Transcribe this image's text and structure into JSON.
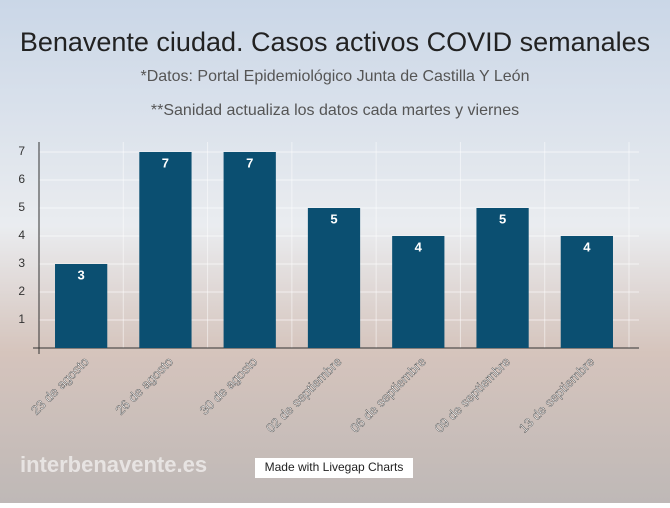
{
  "chart_data": {
    "type": "bar",
    "title": "Benavente ciudad. Casos activos COVID semanales",
    "subtitles": [
      "*Datos: Portal Epidemiológico Junta de Castilla Y León",
      "**Sanidad actualiza los datos cada martes y viernes"
    ],
    "categories": [
      "23 de agosto",
      "26 de agosto",
      "30 de agosto",
      "02 de septiembre",
      "06 de septiembre",
      "09 de septiembre",
      "13 de septiembre"
    ],
    "values": [
      3,
      7,
      7,
      5,
      4,
      5,
      4
    ],
    "color": "#0b4f71",
    "ylim": [
      0,
      7
    ],
    "yticks": [
      1,
      2,
      3,
      4,
      5,
      6,
      7
    ],
    "grid": true,
    "footer": "Made with Livegap Charts",
    "watermark": "interbenavente.es"
  }
}
